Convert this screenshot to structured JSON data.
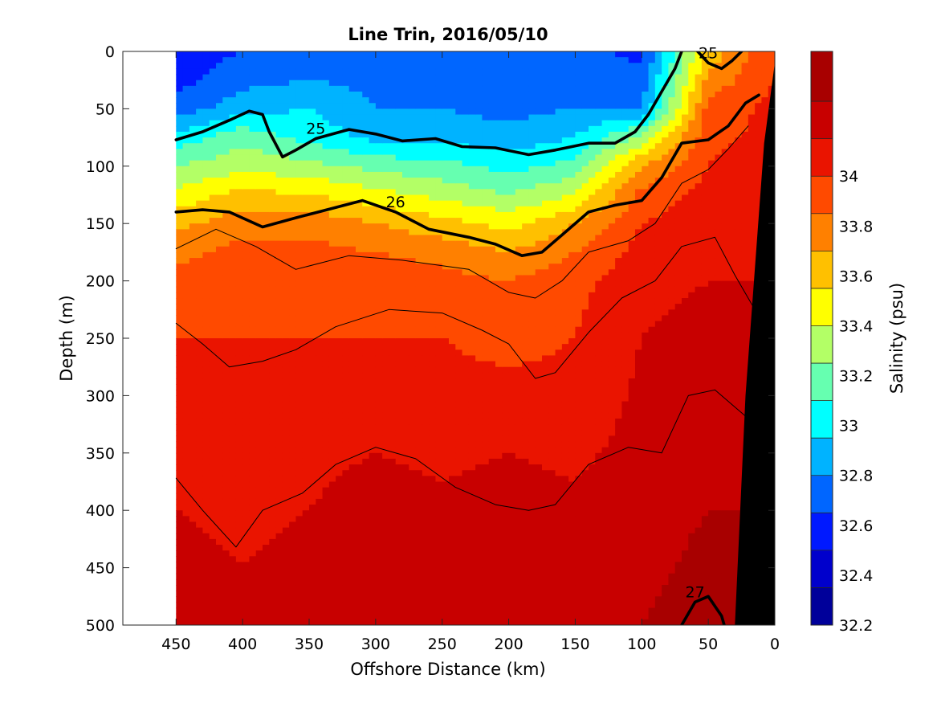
{
  "chart_data": {
    "type": "heatmap",
    "subtype": "filled-contour-section",
    "title": "Line Trin, 2016/05/10",
    "xlabel": "Offshore Distance (km)",
    "ylabel": "Depth (m)",
    "x_axis": {
      "reversed": true,
      "lim": [
        0,
        490
      ],
      "ticks": [
        450,
        400,
        350,
        300,
        250,
        200,
        150,
        100,
        50,
        0
      ]
    },
    "y_axis": {
      "reversed": true,
      "lim": [
        0,
        500
      ],
      "ticks": [
        0,
        50,
        100,
        150,
        200,
        250,
        300,
        350,
        400,
        450,
        500
      ]
    },
    "data_extent_x_km": [
      0,
      450
    ],
    "colorbar": {
      "label": "Salinity (psu)",
      "lim": [
        32.2,
        34.5
      ],
      "ticks": [
        32.2,
        32.4,
        32.6,
        32.8,
        33,
        33.2,
        33.4,
        33.6,
        33.8,
        34
      ],
      "levels": [
        32.2,
        32.35,
        32.5,
        32.65,
        32.8,
        32.95,
        33.1,
        33.25,
        33.4,
        33.55,
        33.7,
        33.85,
        34.0,
        34.15,
        34.3,
        34.5
      ],
      "colors": [
        "#00009a",
        "#0000cc",
        "#0019ff",
        "#0066ff",
        "#00b3ff",
        "#00ffff",
        "#66ffb0",
        "#b3ff66",
        "#ffff00",
        "#ffc000",
        "#ff8000",
        "#ff4a00",
        "#ea1400",
        "#c80000",
        "#a80000"
      ]
    },
    "salinity_field": {
      "x_km": [
        450,
        400,
        350,
        300,
        250,
        200,
        150,
        100,
        50,
        0
      ],
      "depth_m": [
        0,
        25,
        50,
        75,
        100,
        125,
        150,
        175,
        200,
        250,
        300,
        350,
        400,
        450,
        500
      ],
      "values": [
        [
          32.55,
          32.65,
          32.75,
          32.7,
          32.7,
          32.65,
          32.7,
          32.6,
          33.6,
          34.0
        ],
        [
          32.6,
          32.75,
          32.8,
          32.75,
          32.75,
          32.7,
          32.75,
          32.7,
          33.75,
          34.0
        ],
        [
          32.7,
          32.9,
          32.95,
          32.8,
          32.8,
          32.75,
          32.8,
          32.8,
          33.9,
          34.05
        ],
        [
          33.0,
          33.2,
          33.05,
          32.9,
          32.9,
          32.85,
          32.95,
          33.3,
          33.95,
          34.05
        ],
        [
          33.25,
          33.35,
          33.3,
          33.2,
          33.15,
          33.05,
          33.15,
          33.7,
          34.0,
          34.1
        ],
        [
          33.45,
          33.6,
          33.55,
          33.45,
          33.35,
          33.25,
          33.4,
          33.9,
          34.05,
          34.1
        ],
        [
          33.65,
          33.8,
          33.8,
          33.7,
          33.6,
          33.5,
          33.7,
          34.0,
          34.1,
          34.15
        ],
        [
          33.8,
          33.9,
          33.9,
          33.85,
          33.8,
          33.7,
          33.85,
          34.05,
          34.1,
          34.15
        ],
        [
          33.9,
          33.95,
          33.95,
          33.95,
          33.9,
          33.85,
          33.95,
          34.1,
          34.15,
          34.15
        ],
        [
          34.0,
          34.0,
          34.0,
          34.0,
          34.0,
          33.95,
          34.0,
          34.15,
          34.2,
          34.2
        ],
        [
          34.05,
          34.05,
          34.05,
          34.05,
          34.05,
          34.05,
          34.05,
          34.18,
          34.22,
          34.22
        ],
        [
          34.12,
          34.1,
          34.12,
          34.15,
          34.12,
          34.15,
          34.12,
          34.2,
          34.25,
          34.25
        ],
        [
          34.15,
          34.12,
          34.15,
          34.2,
          34.18,
          34.2,
          34.18,
          34.22,
          34.3,
          34.3
        ],
        [
          34.18,
          34.15,
          34.18,
          34.2,
          34.2,
          34.22,
          34.22,
          34.25,
          34.35,
          34.35
        ],
        [
          34.2,
          34.2,
          34.2,
          34.22,
          34.22,
          34.25,
          34.25,
          34.3,
          34.4,
          34.4
        ]
      ]
    },
    "density_contours": [
      {
        "label": "25",
        "style": "bold",
        "points": [
          [
            450,
            77
          ],
          [
            430,
            70
          ],
          [
            410,
            60
          ],
          [
            395,
            52
          ],
          [
            385,
            55
          ],
          [
            380,
            70
          ],
          [
            370,
            92
          ],
          [
            360,
            86
          ],
          [
            345,
            76
          ],
          [
            320,
            68
          ],
          [
            300,
            72
          ],
          [
            280,
            78
          ],
          [
            255,
            76
          ],
          [
            235,
            83
          ],
          [
            210,
            84
          ],
          [
            185,
            90
          ],
          [
            165,
            86
          ],
          [
            140,
            80
          ],
          [
            120,
            80
          ],
          [
            105,
            70
          ],
          [
            95,
            55
          ],
          [
            85,
            35
          ],
          [
            75,
            15
          ],
          [
            70,
            0
          ]
        ]
      },
      {
        "label": "25",
        "style": "bold",
        "points": [
          [
            58,
            0
          ],
          [
            50,
            10
          ],
          [
            40,
            15
          ],
          [
            32,
            8
          ],
          [
            25,
            0
          ]
        ]
      },
      {
        "label": "26",
        "style": "bold",
        "points": [
          [
            450,
            140
          ],
          [
            430,
            138
          ],
          [
            410,
            140
          ],
          [
            385,
            153
          ],
          [
            360,
            145
          ],
          [
            330,
            136
          ],
          [
            310,
            130
          ],
          [
            285,
            140
          ],
          [
            260,
            155
          ],
          [
            230,
            162
          ],
          [
            210,
            168
          ],
          [
            190,
            178
          ],
          [
            175,
            175
          ],
          [
            160,
            160
          ],
          [
            140,
            140
          ],
          [
            120,
            134
          ],
          [
            100,
            130
          ],
          [
            85,
            110
          ],
          [
            70,
            80
          ],
          [
            50,
            77
          ],
          [
            35,
            65
          ],
          [
            22,
            45
          ],
          [
            12,
            38
          ]
        ]
      },
      {
        "label": "27",
        "style": "bold",
        "points": [
          [
            70,
            500
          ],
          [
            60,
            480
          ],
          [
            50,
            475
          ],
          [
            40,
            492
          ],
          [
            38,
            500
          ]
        ]
      },
      {
        "label": "",
        "style": "thin",
        "points": [
          [
            450,
            172
          ],
          [
            420,
            155
          ],
          [
            390,
            170
          ],
          [
            360,
            190
          ],
          [
            320,
            178
          ],
          [
            280,
            182
          ],
          [
            230,
            190
          ],
          [
            200,
            210
          ],
          [
            180,
            215
          ],
          [
            160,
            200
          ],
          [
            140,
            175
          ],
          [
            110,
            165
          ],
          [
            90,
            150
          ],
          [
            70,
            115
          ],
          [
            50,
            103
          ],
          [
            35,
            85
          ],
          [
            20,
            65
          ]
        ]
      },
      {
        "label": "",
        "style": "thin",
        "points": [
          [
            450,
            237
          ],
          [
            430,
            255
          ],
          [
            410,
            275
          ],
          [
            385,
            270
          ],
          [
            360,
            260
          ],
          [
            330,
            240
          ],
          [
            290,
            225
          ],
          [
            250,
            228
          ],
          [
            220,
            243
          ],
          [
            200,
            255
          ],
          [
            180,
            285
          ],
          [
            165,
            280
          ],
          [
            140,
            245
          ],
          [
            115,
            215
          ],
          [
            90,
            200
          ],
          [
            70,
            170
          ],
          [
            45,
            162
          ],
          [
            30,
            195
          ],
          [
            15,
            225
          ]
        ]
      },
      {
        "label": "",
        "style": "thin",
        "points": [
          [
            450,
            372
          ],
          [
            430,
            400
          ],
          [
            405,
            432
          ],
          [
            385,
            400
          ],
          [
            355,
            385
          ],
          [
            330,
            360
          ],
          [
            300,
            345
          ],
          [
            270,
            355
          ],
          [
            240,
            380
          ],
          [
            210,
            395
          ],
          [
            185,
            400
          ],
          [
            165,
            395
          ],
          [
            140,
            360
          ],
          [
            110,
            345
          ],
          [
            85,
            350
          ],
          [
            65,
            300
          ],
          [
            45,
            295
          ],
          [
            25,
            315
          ],
          [
            10,
            330
          ]
        ]
      }
    ],
    "coastline_bathymetry": {
      "color": "#000000",
      "points": [
        [
          0,
          10
        ],
        [
          0,
          500
        ],
        [
          30,
          500
        ],
        [
          22,
          300
        ],
        [
          8,
          80
        ]
      ]
    }
  }
}
